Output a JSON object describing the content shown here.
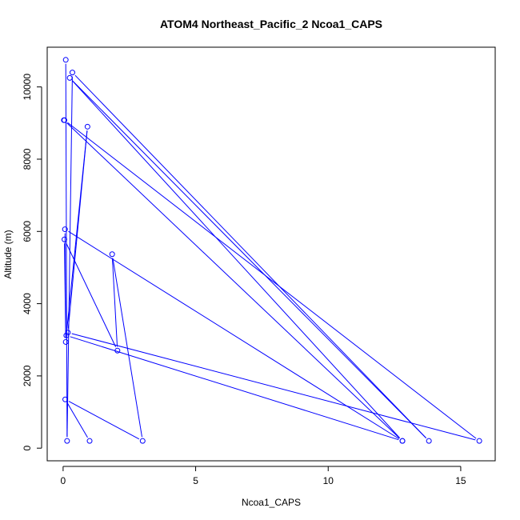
{
  "chart_data": {
    "type": "scatter",
    "title": "ATOM4 Northeast_Pacific_2 Ncoa1_CAPS",
    "xlabel": "Ncoa1_CAPS",
    "ylabel": "Altitude (m)",
    "xlim": [
      -0.6,
      16.3
    ],
    "ylim": [
      -350,
      11100
    ],
    "x_ticks": [
      0,
      5,
      10,
      15
    ],
    "y_ticks": [
      0,
      2000,
      4000,
      6000,
      8000,
      10000
    ],
    "grid": false,
    "line_color": "#0000ff",
    "points": [
      {
        "x": 0.1,
        "y": 10750
      },
      {
        "x": 0.15,
        "y": 200
      },
      {
        "x": 0.35,
        "y": 10400
      },
      {
        "x": 13.8,
        "y": 200
      },
      {
        "x": 0.25,
        "y": 10250
      },
      {
        "x": 12.8,
        "y": 200
      },
      {
        "x": 0.03,
        "y": 9080
      },
      {
        "x": 0.05,
        "y": 9080
      },
      {
        "x": 15.7,
        "y": 200
      },
      {
        "x": 0.18,
        "y": 3200
      },
      {
        "x": 0.92,
        "y": 8900
      },
      {
        "x": 0.12,
        "y": 3120
      },
      {
        "x": 12.8,
        "y": 200
      },
      {
        "x": 0.07,
        "y": 6060
      },
      {
        "x": 0.1,
        "y": 2940
      },
      {
        "x": 0.05,
        "y": 5780
      },
      {
        "x": 2.05,
        "y": 2700
      },
      {
        "x": 1.85,
        "y": 5370
      },
      {
        "x": 3.0,
        "y": 200
      },
      {
        "x": 0.08,
        "y": 1350
      },
      {
        "x": 1.0,
        "y": 200
      }
    ]
  }
}
